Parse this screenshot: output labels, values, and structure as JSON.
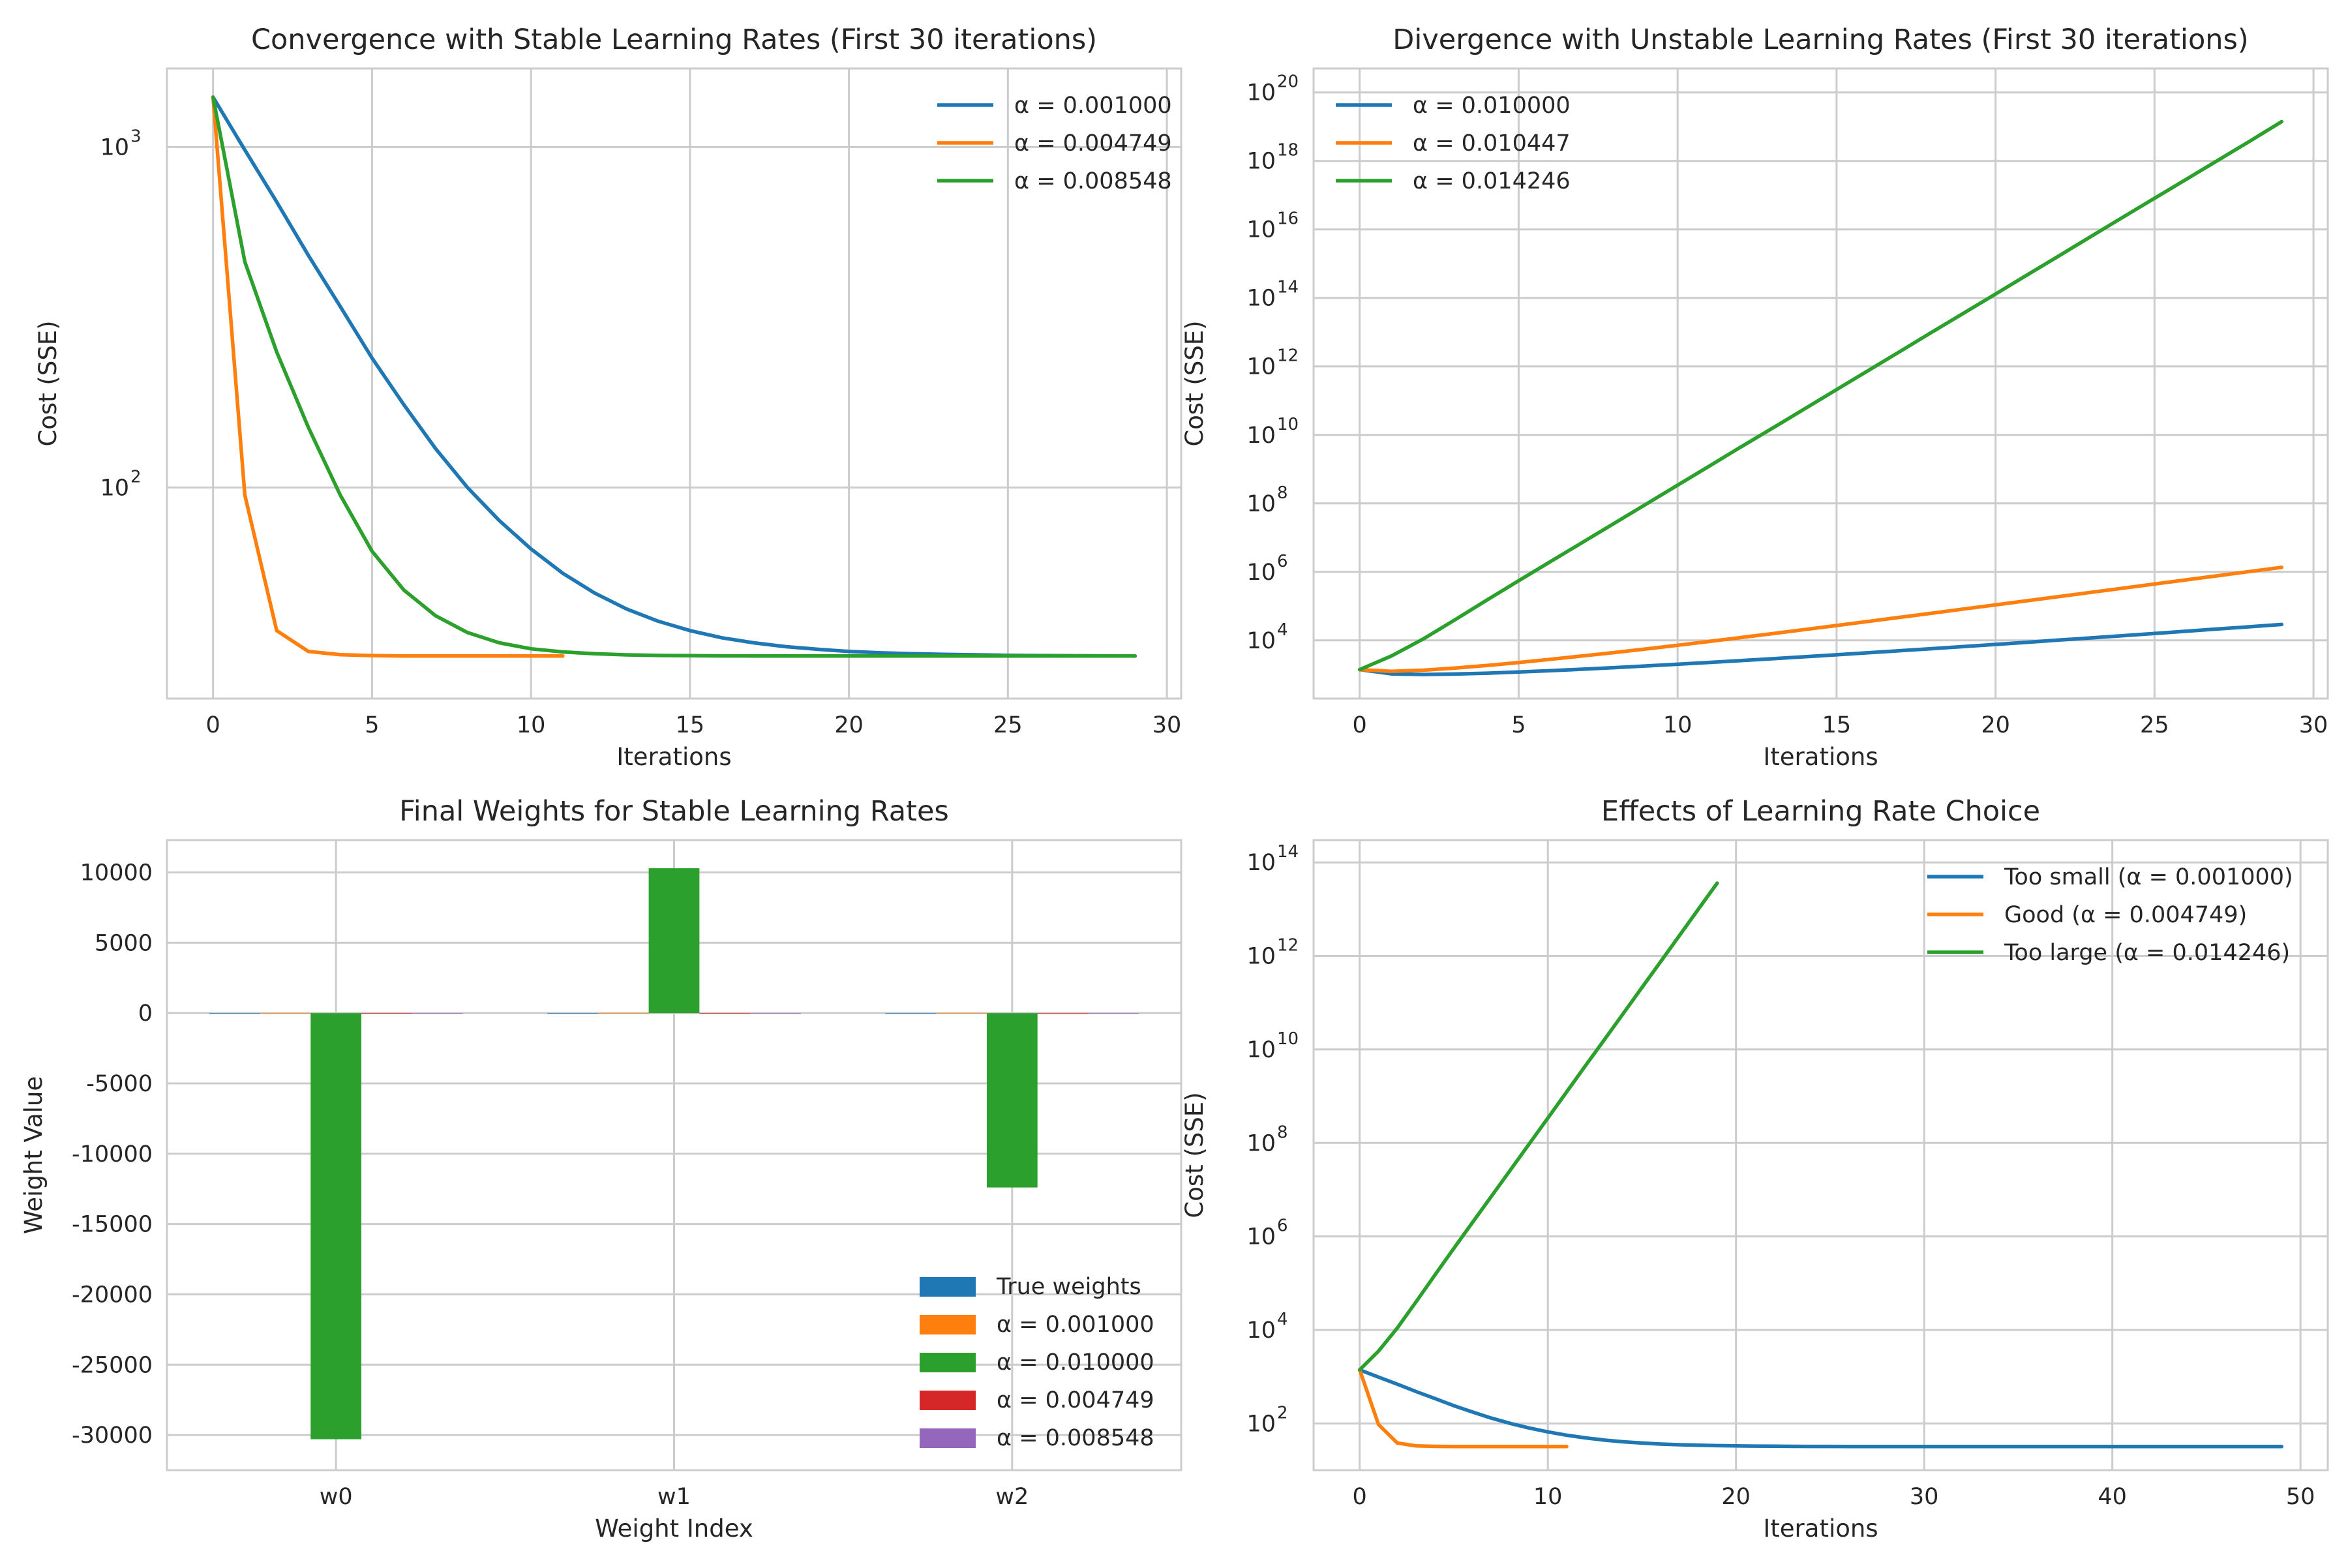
{
  "chart_data": [
    {
      "type": "line",
      "title": "Convergence with Stable Learning Rates (First 30 iterations)",
      "xlabel": "Iterations",
      "ylabel": "Cost (SSE)",
      "yscale": "log",
      "xlim": [
        -1.45,
        30.45
      ],
      "ylim": [
        24.0,
        1700.0
      ],
      "xticks": [
        "0",
        "5",
        "10",
        "15",
        "20",
        "25",
        "30"
      ],
      "yticks": [
        {
          "base": "10",
          "exp": "2",
          "value": 100
        },
        {
          "base": "10",
          "exp": "3",
          "value": 1000
        }
      ],
      "grid": true,
      "legend_position": "top-right",
      "series": [
        {
          "name": "α = 0.001000",
          "color": "#1f77b4",
          "x": [
            0,
            1,
            2,
            3,
            4,
            5,
            6,
            7,
            8,
            9,
            10,
            11,
            12,
            13,
            14,
            15,
            16,
            17,
            18,
            19,
            20,
            21,
            22,
            23,
            24,
            25,
            26,
            27,
            28,
            29
          ],
          "y": [
            1400,
            980,
            690,
            480,
            340,
            240,
            175,
            130,
            100,
            80,
            66,
            56,
            49,
            44,
            40.5,
            38,
            36.2,
            35,
            34.1,
            33.5,
            33,
            32.7,
            32.5,
            32.35,
            32.25,
            32.15,
            32.1,
            32.05,
            32.02,
            32
          ]
        },
        {
          "name": "α = 0.004749",
          "color": "#ff7f0e",
          "x": [
            0,
            1,
            2,
            3,
            4,
            5,
            6,
            7,
            8,
            9,
            10,
            11
          ],
          "y": [
            1400,
            95,
            38,
            33,
            32.3,
            32.1,
            32,
            32,
            32,
            32,
            32,
            32
          ]
        },
        {
          "name": "α = 0.008548",
          "color": "#2ca02c",
          "x": [
            0,
            1,
            2,
            3,
            4,
            5,
            6,
            7,
            8,
            9,
            10,
            11,
            12,
            13,
            14,
            15,
            16,
            17,
            18,
            19,
            20,
            21,
            22,
            23,
            24,
            25,
            26,
            27,
            28,
            29
          ],
          "y": [
            1400,
            460,
            250,
            150,
            95,
            65,
            50,
            42,
            37.5,
            35,
            33.6,
            32.9,
            32.5,
            32.25,
            32.12,
            32.06,
            32.03,
            32.01,
            32,
            32,
            32,
            32,
            32,
            32,
            32,
            32,
            32,
            32,
            32,
            32
          ]
        }
      ]
    },
    {
      "type": "line",
      "title": "Divergence with Unstable Learning Rates (First 30 iterations)",
      "xlabel": "Iterations",
      "ylabel": "Cost (SSE)",
      "yscale": "log",
      "xlim": [
        -1.45,
        30.45
      ],
      "ylim": [
        200.0,
        5e+20
      ],
      "xticks": [
        "0",
        "5",
        "10",
        "15",
        "20",
        "25",
        "30"
      ],
      "yticks": [
        {
          "base": "10",
          "exp": "4",
          "value": 10000.0
        },
        {
          "base": "10",
          "exp": "6",
          "value": 1000000.0
        },
        {
          "base": "10",
          "exp": "8",
          "value": 100000000.0
        },
        {
          "base": "10",
          "exp": "10",
          "value": 10000000000.0
        },
        {
          "base": "10",
          "exp": "12",
          "value": 1000000000000.0
        },
        {
          "base": "10",
          "exp": "14",
          "value": 100000000000000.0
        },
        {
          "base": "10",
          "exp": "16",
          "value": 1e+16
        },
        {
          "base": "10",
          "exp": "18",
          "value": 1e+18
        },
        {
          "base": "10",
          "exp": "20",
          "value": 1e+20
        }
      ],
      "grid": true,
      "legend_position": "top-left",
      "series": [
        {
          "name": "α = 0.010000",
          "color": "#1f77b4",
          "x": [
            0,
            1,
            2,
            3,
            4,
            5,
            6,
            7,
            8,
            9,
            10,
            11,
            12,
            13,
            14,
            15,
            16,
            17,
            18,
            19,
            20,
            21,
            22,
            23,
            24,
            25,
            26,
            27,
            28,
            29
          ],
          "y": [
            1400,
            1050,
            1010,
            1040,
            1100,
            1190,
            1300,
            1440,
            1600,
            1790,
            2010,
            2270,
            2570,
            2920,
            3330,
            3800,
            4350,
            4990,
            5740,
            6610,
            7620,
            8800,
            10200,
            11800,
            13700,
            15900,
            18500,
            21500,
            25000,
            29100
          ]
        },
        {
          "name": "α = 0.010447",
          "color": "#ff7f0e",
          "x": [
            0,
            1,
            2,
            3,
            4,
            5,
            6,
            7,
            8,
            9,
            10,
            11,
            12,
            13,
            14,
            15,
            16,
            17,
            18,
            19,
            20,
            21,
            22,
            23,
            24,
            25,
            26,
            27,
            28,
            29
          ],
          "y": [
            1400,
            1250,
            1350,
            1550,
            1850,
            2250,
            2800,
            3500,
            4400,
            5600,
            7200,
            9300,
            12100,
            15800,
            20700,
            27200,
            35800,
            47200,
            62300,
            82300,
            108800,
            143900,
            190300,
            251800,
            333300,
            441400,
            584700,
            774700,
            1026500,
            1360000
          ]
        },
        {
          "name": "α = 0.014246",
          "color": "#2ca02c",
          "x": [
            0,
            1,
            2,
            3,
            4,
            5,
            6,
            7,
            8,
            9,
            10,
            11,
            12,
            13,
            14,
            15,
            16,
            17,
            18,
            19,
            20,
            21,
            22,
            23,
            24,
            25,
            26,
            27,
            28,
            29
          ],
          "y": [
            1400,
            3500,
            11000,
            40000,
            150000,
            550000,
            2000000,
            7200000,
            26000000,
            94000000,
            340000000,
            1230000000,
            4500000000,
            16000000000,
            58000000000,
            210000000000,
            760000000000,
            2750000000000.0,
            10000000000000.0,
            36000000000000.0,
            130000000000000.0,
            470000000000000.0,
            1700000000000000.0,
            6200000000000000.0,
            2.25e+16,
            8.1e+16,
            2.9e+17,
            1.05e+18,
            3.8e+18,
            1.4e+19
          ]
        }
      ]
    },
    {
      "type": "bar",
      "title": "Final Weights for Stable Learning Rates",
      "xlabel": "Weight Index",
      "ylabel": "Weight Value",
      "categories": [
        "w0",
        "w1",
        "w2"
      ],
      "xlim": [
        -0.5,
        2.5
      ],
      "ylim": [
        -32500,
        12300
      ],
      "yticks": [
        "10000",
        "5000",
        "0",
        "-5000",
        "-10000",
        "-15000",
        "-20000",
        "-25000",
        "-30000"
      ],
      "ytick_values": [
        10000,
        5000,
        0,
        -5000,
        -10000,
        -15000,
        -20000,
        -25000,
        -30000
      ],
      "grid": true,
      "legend_position": "bottom-right",
      "series": [
        {
          "name": "True weights",
          "color": "#1f77b4",
          "values": [
            2,
            3,
            -1
          ]
        },
        {
          "name": "α = 0.001000",
          "color": "#ff7f0e",
          "values": [
            1.5,
            2.8,
            -0.9
          ]
        },
        {
          "name": "α = 0.010000",
          "color": "#2ca02c",
          "values": [
            -30300,
            10300,
            -12400
          ]
        },
        {
          "name": "α = 0.004749",
          "color": "#d62728",
          "values": [
            1.9,
            3.0,
            -1.0
          ]
        },
        {
          "name": "α = 0.008548",
          "color": "#9467bd",
          "values": [
            2.0,
            3.0,
            -1.0
          ]
        }
      ]
    },
    {
      "type": "line",
      "title": "Effects of Learning Rate Choice",
      "xlabel": "Iterations",
      "ylabel": "Cost (SSE)",
      "yscale": "log",
      "xlim": [
        -2.45,
        51.45
      ],
      "ylim": [
        10.0,
        300000000000000.0
      ],
      "xticks": [
        "0",
        "10",
        "20",
        "30",
        "40",
        "50"
      ],
      "yticks": [
        {
          "base": "10",
          "exp": "2",
          "value": 100
        },
        {
          "base": "10",
          "exp": "4",
          "value": 10000.0
        },
        {
          "base": "10",
          "exp": "6",
          "value": 1000000.0
        },
        {
          "base": "10",
          "exp": "8",
          "value": 100000000.0
        },
        {
          "base": "10",
          "exp": "10",
          "value": 10000000000.0
        },
        {
          "base": "10",
          "exp": "12",
          "value": 1000000000000.0
        },
        {
          "base": "10",
          "exp": "14",
          "value": 100000000000000.0
        }
      ],
      "grid": true,
      "legend_position": "top-right",
      "series": [
        {
          "name": "Too small (α = 0.001000)",
          "color": "#1f77b4",
          "x": [
            0,
            1,
            2,
            3,
            4,
            5,
            6,
            7,
            8,
            9,
            10,
            11,
            12,
            13,
            14,
            15,
            16,
            17,
            18,
            19,
            20,
            21,
            22,
            23,
            24,
            25,
            26,
            27,
            28,
            29,
            30,
            31,
            32,
            33,
            34,
            35,
            36,
            37,
            38,
            39,
            40,
            41,
            42,
            43,
            44,
            45,
            46,
            47,
            48,
            49
          ],
          "y": [
            1400,
            980,
            690,
            480,
            340,
            240,
            175,
            130,
            100,
            80,
            66,
            56,
            49,
            44,
            40.5,
            38,
            36.2,
            35,
            34.1,
            33.5,
            33,
            32.7,
            32.5,
            32.35,
            32.25,
            32.15,
            32.1,
            32.05,
            32.02,
            32,
            32,
            32,
            32,
            32,
            32,
            32,
            32,
            32,
            32,
            32,
            32,
            32,
            32,
            32,
            32,
            32,
            32,
            32,
            32,
            32
          ]
        },
        {
          "name": "Good (α = 0.004749)",
          "color": "#ff7f0e",
          "x": [
            0,
            1,
            2,
            3,
            4,
            5,
            6,
            7,
            8,
            9,
            10,
            11
          ],
          "y": [
            1400,
            95,
            38,
            33,
            32.3,
            32.1,
            32,
            32,
            32,
            32,
            32,
            32
          ]
        },
        {
          "name": "Too large (α = 0.014246)",
          "color": "#2ca02c",
          "x": [
            0,
            1,
            2,
            3,
            4,
            5,
            6,
            7,
            8,
            9,
            10,
            11,
            12,
            13,
            14,
            15,
            16,
            17,
            18,
            19
          ],
          "y": [
            1400,
            3500,
            11000,
            40000,
            150000,
            550000,
            2000000,
            7200000,
            26000000,
            94000000,
            340000000,
            1230000000,
            4500000000,
            16000000000,
            58000000000,
            210000000000,
            760000000000,
            2750000000000.0,
            10000000000000.0,
            36000000000000.0
          ]
        }
      ]
    }
  ]
}
